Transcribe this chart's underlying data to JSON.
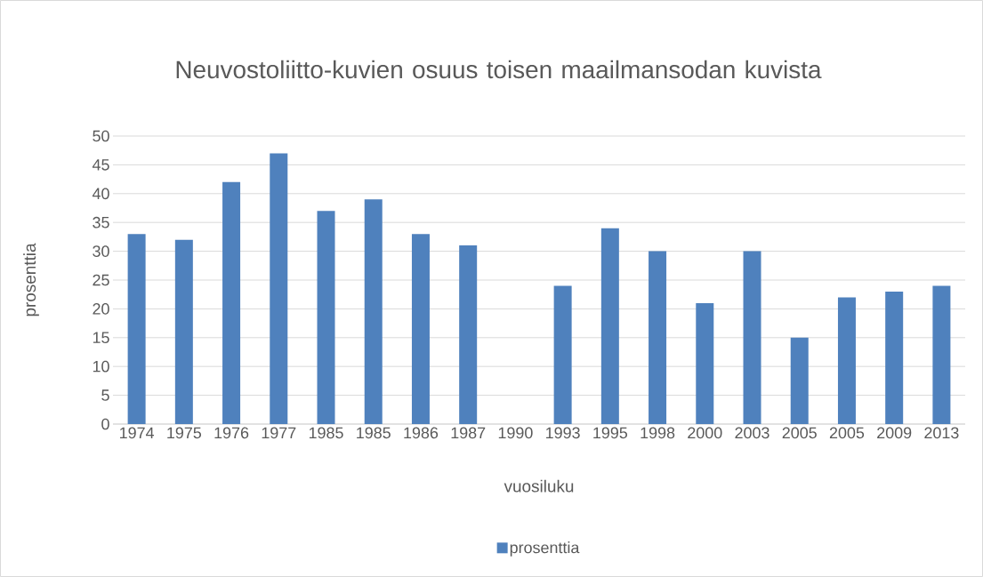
{
  "chart_data": {
    "type": "bar",
    "title": "Neuvostoliitto-kuvien osuus toisen maailmansodan kuvista",
    "xlabel": "vuosiluku",
    "ylabel": "prosenttia",
    "categories": [
      "1974",
      "1975",
      "1976",
      "1977",
      "1985",
      "1985",
      "1986",
      "1987",
      "1990",
      "1993",
      "1995",
      "1998",
      "2000",
      "2003",
      "2005",
      "2005",
      "2009",
      "2013"
    ],
    "series": [
      {
        "name": "prosenttia",
        "color": "#4f81bd",
        "values": [
          33,
          32,
          42,
          47,
          37,
          39,
          33,
          31,
          null,
          24,
          34,
          30,
          21,
          30,
          15,
          22,
          23,
          24
        ]
      }
    ],
    "ylim": [
      0,
      50
    ],
    "yticks": [
      0,
      5,
      10,
      15,
      20,
      25,
      30,
      35,
      40,
      45,
      50
    ],
    "grid": "y",
    "legend": "bottom"
  }
}
